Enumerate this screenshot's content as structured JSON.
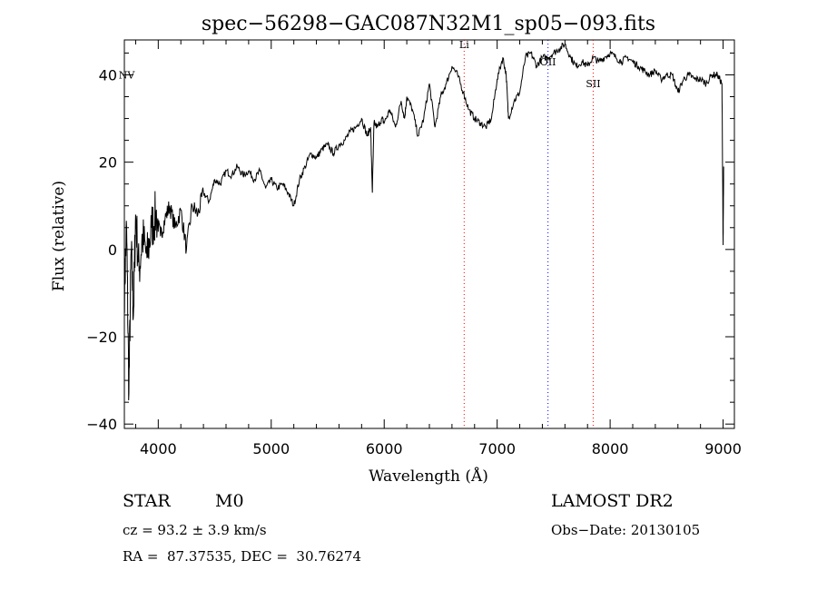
{
  "chart_data": {
    "type": "line",
    "title": "spec−56298−GAC087N32M1_sp05−093.fits",
    "xlabel": "Wavelength (Å)",
    "ylabel": "Flux (relative)",
    "xlim": [
      3700,
      9100
    ],
    "ylim": [
      -41,
      48
    ],
    "xticks": [
      4000,
      5000,
      6000,
      7000,
      8000,
      9000
    ],
    "xtick_labels": [
      "4000",
      "5000",
      "6000",
      "7000",
      "8000",
      "9000"
    ],
    "yticks": [
      -40,
      -20,
      0,
      20,
      40
    ],
    "ytick_labels": [
      "−40",
      "−20",
      "0",
      "20",
      "40"
    ],
    "series": [
      {
        "color": "#000000",
        "x": [
          3700,
          3720,
          3740,
          3760,
          3780,
          3800,
          3830,
          3860,
          3900,
          3940,
          3980,
          4020,
          4060,
          4100,
          4150,
          4200,
          4250,
          4300,
          4350,
          4400,
          4450,
          4500,
          4550,
          4600,
          4650,
          4700,
          4750,
          4800,
          4850,
          4900,
          4950,
          5000,
          5050,
          5100,
          5150,
          5200,
          5250,
          5300,
          5350,
          5400,
          5450,
          5500,
          5550,
          5600,
          5650,
          5700,
          5750,
          5800,
          5850,
          5880,
          5895,
          5910,
          5940,
          5980,
          6000,
          6050,
          6100,
          6150,
          6180,
          6200,
          6250,
          6300,
          6350,
          6400,
          6450,
          6500,
          6550,
          6600,
          6650,
          6700,
          6750,
          6800,
          6850,
          6900,
          6950,
          7000,
          7050,
          7080,
          7100,
          7150,
          7200,
          7250,
          7300,
          7350,
          7400,
          7450,
          7500,
          7550,
          7600,
          7650,
          7700,
          7750,
          7800,
          7850,
          7900,
          7950,
          8000,
          8050,
          8100,
          8150,
          8200,
          8250,
          8300,
          8350,
          8400,
          8450,
          8500,
          8550,
          8600,
          8650,
          8700,
          8750,
          8800,
          8850,
          8900,
          8950,
          8990,
          9000,
          9005
        ],
        "y": [
          -10,
          5,
          -33,
          0,
          -15,
          8,
          -5,
          3,
          -2,
          5,
          8,
          3,
          7,
          10,
          5,
          9,
          0,
          10,
          8,
          13,
          11,
          16,
          15,
          18,
          17,
          19,
          17,
          18,
          16,
          18,
          14,
          16,
          14,
          15,
          13,
          10,
          16,
          19,
          22,
          21,
          23,
          24,
          22,
          24,
          25,
          27,
          28,
          30,
          26,
          28,
          13,
          29,
          28,
          30,
          29,
          32,
          28,
          34,
          30,
          35,
          32,
          26,
          30,
          38,
          28,
          35,
          38,
          42,
          40,
          36,
          32,
          30,
          29,
          28,
          30,
          39,
          44,
          40,
          30,
          34,
          36,
          44,
          45,
          42,
          44,
          44,
          45,
          46,
          47,
          44,
          42,
          43,
          42,
          44,
          43,
          44,
          45,
          44,
          43,
          44,
          43,
          42,
          41,
          40,
          41,
          39,
          40,
          40,
          36,
          39,
          40,
          39,
          39,
          38,
          40,
          40,
          38,
          1,
          19
        ]
      }
    ],
    "annotations": [
      {
        "label": "NV",
        "x": 3720,
        "y": 40
      },
      {
        "label": "Li",
        "x": 6708,
        "y": 47
      },
      {
        "label": "OII",
        "x": 7450,
        "y": 43
      },
      {
        "label": "SII",
        "x": 7850,
        "y": 38
      }
    ],
    "vlines": [
      {
        "x": 6708,
        "color": "#ff0000"
      },
      {
        "x": 7450,
        "color": "#0000ff"
      },
      {
        "x": 7850,
        "color": "#ff0000"
      }
    ]
  },
  "info": {
    "class_label": "STAR",
    "subclass_label": "M0",
    "survey_label": "LAMOST DR2",
    "cz_text": "cz = 93.2 ± 3.9 km/s",
    "obsdate_text": "Obs−Date: 20130105",
    "radec_text": "RA =  87.37535, DEC =  30.76274"
  }
}
